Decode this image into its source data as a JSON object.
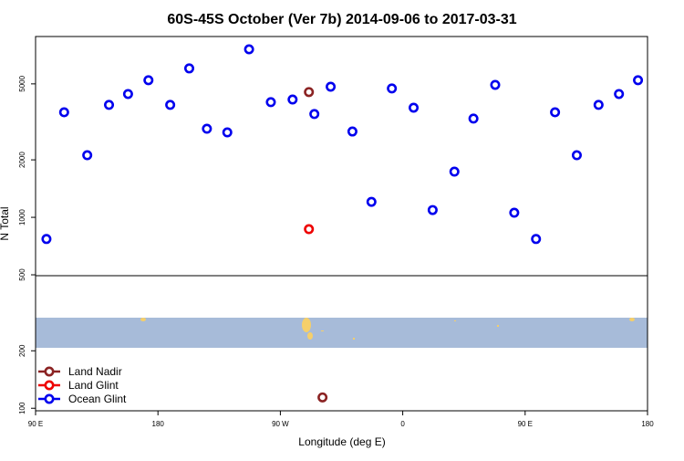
{
  "chart_data": {
    "type": "scatter",
    "title": "60S-45S October (Ver 7b)   2014-09-06 to 2017-03-31",
    "x_label": "Longitude (deg E)",
    "y_label": "N Total",
    "log_y": true,
    "xlim": [
      90,
      540
    ],
    "ylim": [
      97,
      8850
    ],
    "xticks": [
      {
        "value": 90,
        "label": "90 E"
      },
      180,
      {
        "value": 270,
        "label": "90 W"
      },
      {
        "value": 360,
        "label": "0"
      },
      {
        "value": 450,
        "label": "90 E"
      },
      {
        "value": 540,
        "label": "180"
      }
    ],
    "yticks": [
      100,
      200,
      500,
      1000,
      2000,
      5000
    ],
    "legend": "bottom-left",
    "series": [
      {
        "name": "Land Nadir",
        "color": "#8b2323",
        "x": [
          291,
          301
        ],
        "values": [
          4530,
          114
        ]
      },
      {
        "name": "Land Glint",
        "color": "#ee0000",
        "x": [
          291
        ],
        "values": [
          867
        ]
      },
      {
        "name": "Ocean Glint",
        "color": "#0000ee",
        "x": [
          98,
          111,
          128,
          144,
          158,
          173,
          189,
          203,
          216,
          231,
          247,
          263,
          279,
          295,
          307,
          323,
          337,
          352,
          368,
          382,
          398,
          412,
          428,
          442,
          458,
          472,
          488,
          504,
          519,
          533
        ],
        "values": [
          770,
          3550,
          2115,
          3880,
          4425,
          5225,
          3880,
          6025,
          2910,
          2785,
          7585,
          4010,
          4140,
          3475,
          4830,
          2815,
          1205,
          4730,
          3750,
          1092,
          1735,
          3290,
          4940,
          1057,
          770,
          3550,
          2115,
          3880,
          4425,
          5225
        ]
      }
    ]
  }
}
